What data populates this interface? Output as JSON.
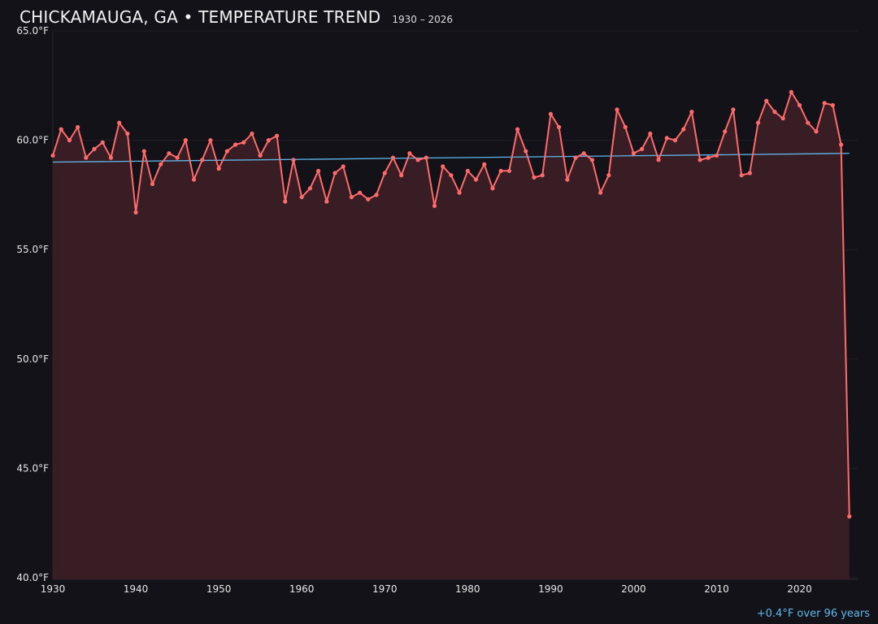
{
  "header": {
    "title": "CHICKAMAUGA, GA • TEMPERATURE TREND",
    "subtitle": "1930 – 2026"
  },
  "footer": {
    "trend_note": "+0.4°F over 96 years"
  },
  "colors": {
    "line": "#ff6b6b",
    "fill": "#3a1f25",
    "trend": "#5fb8ec",
    "background": "#131218"
  },
  "chart_data": {
    "type": "line",
    "title": "CHICKAMAUGA, GA • TEMPERATURE TREND",
    "subtitle": "1930 – 2026",
    "xlim": [
      1930,
      2027
    ],
    "ylim": [
      40,
      65
    ],
    "grid": true,
    "x_ticks": [
      1930,
      1940,
      1950,
      1960,
      1970,
      1980,
      1990,
      2000,
      2010,
      2020
    ],
    "y_ticks": [
      {
        "value": 40,
        "label": "40.0°F"
      },
      {
        "value": 45,
        "label": "45.0°F"
      },
      {
        "value": 50,
        "label": "50.0°F"
      },
      {
        "value": 55,
        "label": "55.0°F"
      },
      {
        "value": 60,
        "label": "60.0°F"
      },
      {
        "value": 65,
        "label": "65.0°F"
      }
    ],
    "series": [
      {
        "x": [
          1930,
          1931,
          1932,
          1933,
          1934,
          1935,
          1936,
          1937,
          1938,
          1939,
          1940,
          1941,
          1942,
          1943,
          1944,
          1945,
          1946,
          1947,
          1948,
          1949,
          1950,
          1951,
          1952,
          1953,
          1954,
          1955,
          1956,
          1957,
          1958,
          1959,
          1960,
          1961,
          1962,
          1963,
          1964,
          1965,
          1966,
          1967,
          1968,
          1969,
          1970,
          1971,
          1972,
          1973,
          1974,
          1975,
          1976,
          1977,
          1978,
          1979,
          1980,
          1981,
          1982,
          1983,
          1984,
          1985,
          1986,
          1987,
          1988,
          1989,
          1990,
          1991,
          1992,
          1993,
          1994,
          1995,
          1996,
          1997,
          1998,
          1999,
          2000,
          2001,
          2002,
          2003,
          2004,
          2005,
          2006,
          2007,
          2008,
          2009,
          2010,
          2011,
          2012,
          2013,
          2014,
          2015,
          2016,
          2017,
          2018,
          2019,
          2020,
          2021,
          2022,
          2023,
          2024,
          2025,
          2026
        ],
        "values": [
          59.3,
          60.5,
          60.0,
          60.6,
          59.2,
          59.6,
          59.9,
          59.2,
          60.8,
          60.3,
          56.7,
          59.5,
          58.0,
          58.9,
          59.4,
          59.2,
          60.0,
          58.2,
          59.1,
          60.0,
          58.7,
          59.5,
          59.8,
          59.9,
          60.3,
          59.3,
          60.0,
          60.2,
          57.2,
          59.1,
          57.4,
          57.8,
          58.6,
          57.2,
          58.5,
          58.8,
          57.4,
          57.6,
          57.3,
          57.5,
          58.5,
          59.2,
          58.4,
          59.4,
          59.1,
          59.2,
          57.0,
          58.8,
          58.4,
          57.6,
          58.6,
          58.2,
          58.9,
          57.8,
          58.6,
          58.6,
          60.5,
          59.5,
          58.3,
          58.4,
          61.2,
          60.6,
          58.2,
          59.2,
          59.4,
          59.1,
          57.6,
          58.4,
          61.4,
          60.6,
          59.4,
          59.6,
          60.3,
          59.1,
          60.1,
          60.0,
          60.5,
          61.3,
          59.1,
          59.2,
          59.3,
          60.4,
          61.4,
          58.4,
          58.5,
          60.8,
          61.8,
          61.3,
          61.0,
          62.2,
          61.6,
          60.8,
          60.4,
          61.7,
          61.6,
          59.8,
          42.8
        ]
      }
    ],
    "trend": {
      "x": [
        1930,
        2026
      ],
      "values": [
        59.0,
        59.4
      ]
    }
  }
}
